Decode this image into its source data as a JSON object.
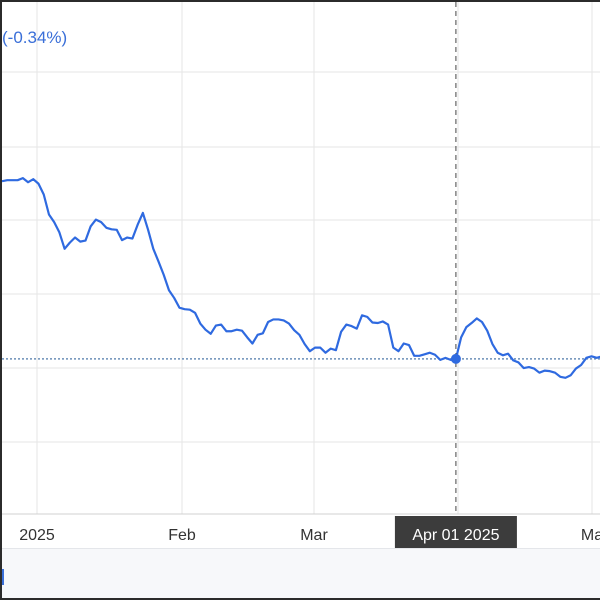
{
  "header": {
    "change_text": "(-0.34%)"
  },
  "colors": {
    "line": "#2f6ae0",
    "grid": "#e6e6e6",
    "reference_line": "#6b8fb8",
    "crosshair": "#444444",
    "tooltip_bg": "#3c3c3c"
  },
  "crosshair": {
    "label": "Apr 01 2025"
  },
  "chart_data": {
    "type": "line",
    "x_ticks": [
      "2025",
      "Feb",
      "Mar",
      "Apr 01 2025",
      "Ma"
    ],
    "grid": true,
    "reference_line": true,
    "y_values": [
      0.65,
      0.652,
      0.652,
      0.652,
      0.656,
      0.648,
      0.654,
      0.645,
      0.624,
      0.585,
      0.57,
      0.55,
      0.518,
      0.53,
      0.54,
      0.532,
      0.534,
      0.562,
      0.575,
      0.57,
      0.559,
      0.556,
      0.555,
      0.535,
      0.54,
      0.538,
      0.565,
      0.588,
      0.555,
      0.518,
      0.493,
      0.467,
      0.437,
      0.422,
      0.403,
      0.4,
      0.399,
      0.393,
      0.372,
      0.36,
      0.352,
      0.368,
      0.37,
      0.357,
      0.357,
      0.36,
      0.358,
      0.345,
      0.333,
      0.35,
      0.353,
      0.375,
      0.38,
      0.38,
      0.378,
      0.372,
      0.359,
      0.35,
      0.332,
      0.318,
      0.325,
      0.325,
      0.315,
      0.323,
      0.32,
      0.356,
      0.37,
      0.367,
      0.362,
      0.388,
      0.385,
      0.374,
      0.373,
      0.376,
      0.37,
      0.325,
      0.318,
      0.333,
      0.33,
      0.309,
      0.309,
      0.312,
      0.315,
      0.311,
      0.301,
      0.305,
      0.301,
      0.303,
      0.345,
      0.365,
      0.373,
      0.382,
      0.375,
      0.358,
      0.332,
      0.315,
      0.31,
      0.313,
      0.3,
      0.296,
      0.285,
      0.287,
      0.284,
      0.276,
      0.28,
      0.279,
      0.276,
      0.268,
      0.266,
      0.271,
      0.284,
      0.291,
      0.305,
      0.308,
      0.305,
      0.308
    ]
  }
}
